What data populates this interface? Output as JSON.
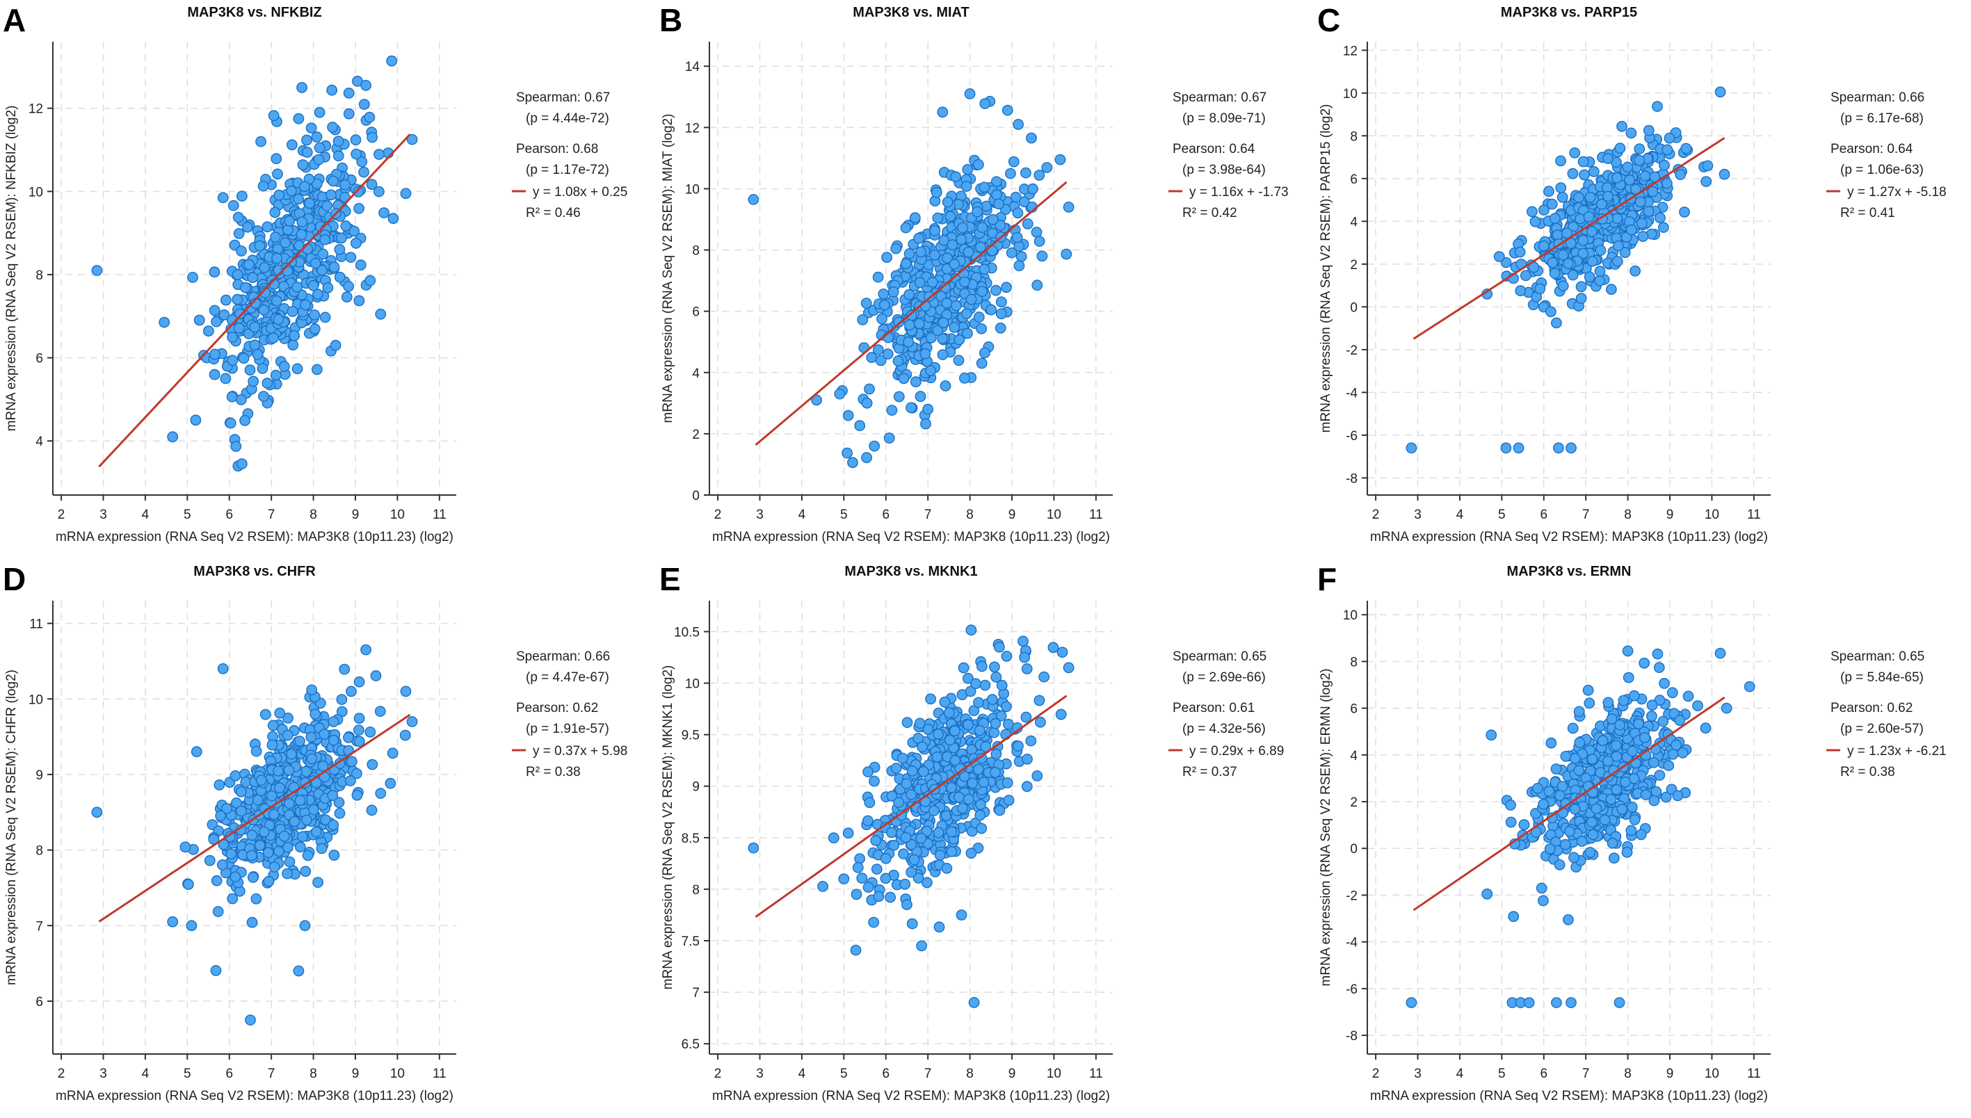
{
  "colors": {
    "point_fill": "#4da6f2",
    "point_stroke": "#1b6fc2",
    "fit_line": "#c0392b",
    "grid": "#dddddd",
    "axis": "#333333"
  },
  "chart_data": [
    {
      "type": "scatter",
      "panel": "A",
      "title": "MAP3K8 vs. NFKBIZ",
      "xlabel": "mRNA expression (RNA Seq V2 RSEM): MAP3K8 (10p11.23) (log2)",
      "ylabel": "mRNA expression (RNA Seq V2 RSEM): NFKBIZ (log2)",
      "xlim": [
        1.8,
        11.4
      ],
      "ylim": [
        2.7,
        13.6
      ],
      "xticks": [
        2,
        3,
        4,
        5,
        6,
        7,
        8,
        9,
        10,
        11
      ],
      "yticks": [
        4,
        6,
        8,
        10,
        12
      ],
      "fit": {
        "slope": 1.08,
        "intercept": 0.25,
        "x_range": [
          2.9,
          10.3
        ]
      },
      "stats": {
        "spearman": "Spearman: 0.67",
        "spearman_p": "(p = 4.44e-72)",
        "pearson": "Pearson: 0.68",
        "pearson_p": "(p = 1.17e-72)",
        "equation": "y = 1.08x + 0.25",
        "r2": "R² = 0.46"
      },
      "scatter_model": {
        "center_x": 7.4,
        "sd_x": 0.85,
        "sd_y": 1.25,
        "n": 520,
        "seed": 11
      },
      "outliers": [
        [
          2.85,
          8.1
        ],
        [
          4.65,
          4.1
        ],
        [
          6.3,
          3.45
        ],
        [
          9.05,
          12.65
        ],
        [
          9.25,
          12.55
        ],
        [
          9.4,
          11.3
        ],
        [
          10.35,
          11.25
        ],
        [
          10.2,
          9.95
        ],
        [
          9.9,
          9.35
        ],
        [
          9.6,
          7.05
        ],
        [
          5.85,
          9.85
        ],
        [
          6.75,
          11.2
        ],
        [
          8.15,
          11.9
        ],
        [
          7.65,
          11.75
        ],
        [
          5.2,
          4.5
        ]
      ]
    },
    {
      "type": "scatter",
      "panel": "B",
      "title": "MAP3K8 vs. MIAT",
      "xlabel": "mRNA expression (RNA Seq V2 RSEM): MAP3K8 (10p11.23) (log2)",
      "ylabel": "mRNA expression (RNA Seq V2 RSEM): MIAT (log2)",
      "xlim": [
        1.8,
        11.4
      ],
      "ylim": [
        0,
        14.8
      ],
      "xticks": [
        2,
        3,
        4,
        5,
        6,
        7,
        8,
        9,
        10,
        11
      ],
      "yticks": [
        0,
        2,
        4,
        6,
        8,
        10,
        12,
        14
      ],
      "fit": {
        "slope": 1.16,
        "intercept": -1.73,
        "x_range": [
          2.9,
          10.3
        ]
      },
      "stats": {
        "spearman": "Spearman: 0.67",
        "spearman_p": "(p = 8.09e-71)",
        "pearson": "Pearson: 0.64",
        "pearson_p": "(p = 3.98e-64)",
        "equation": "y = 1.16x + -1.73",
        "r2": "R² = 0.42"
      },
      "scatter_model": {
        "center_x": 7.4,
        "sd_x": 0.85,
        "sd_y": 1.45,
        "n": 520,
        "seed": 23
      },
      "outliers": [
        [
          2.85,
          9.65
        ],
        [
          4.35,
          3.1
        ],
        [
          4.9,
          3.3
        ],
        [
          6.6,
          2.85
        ],
        [
          7.0,
          2.8
        ],
        [
          8.0,
          13.1
        ],
        [
          7.35,
          12.5
        ],
        [
          9.15,
          12.1
        ],
        [
          10.15,
          10.95
        ],
        [
          10.35,
          9.4
        ],
        [
          9.6,
          6.85
        ],
        [
          5.55,
          3.0
        ]
      ]
    },
    {
      "type": "scatter",
      "panel": "C",
      "title": "MAP3K8 vs. PARP15",
      "xlabel": "mRNA expression (RNA Seq V2 RSEM): MAP3K8 (10p11.23) (log2)",
      "ylabel": "mRNA expression (RNA Seq V2 RSEM): PARP15 (log2)",
      "xlim": [
        1.8,
        11.4
      ],
      "ylim": [
        -8.8,
        12.4
      ],
      "xticks": [
        2,
        3,
        4,
        5,
        6,
        7,
        8,
        9,
        10,
        11
      ],
      "yticks": [
        -8,
        -6,
        -4,
        -2,
        0,
        2,
        4,
        6,
        8,
        10,
        12
      ],
      "fit": {
        "slope": 1.27,
        "intercept": -5.18,
        "x_range": [
          2.9,
          10.3
        ]
      },
      "stats": {
        "spearman": "Spearman: 0.66",
        "spearman_p": "(p = 6.17e-68)",
        "pearson": "Pearson: 0.64",
        "pearson_p": "(p = 1.06e-63)",
        "equation": "y = 1.27x + -5.18",
        "r2": "R² = 0.41"
      },
      "scatter_model": {
        "center_x": 7.4,
        "sd_x": 0.85,
        "sd_y": 1.25,
        "n": 520,
        "seed": 37
      },
      "outliers": [
        [
          2.85,
          -6.6
        ],
        [
          5.1,
          -6.6
        ],
        [
          5.4,
          -6.6
        ],
        [
          6.35,
          -6.6
        ],
        [
          6.65,
          -6.6
        ],
        [
          10.2,
          10.05
        ],
        [
          10.3,
          6.2
        ],
        [
          9.9,
          6.6
        ],
        [
          4.65,
          0.6
        ],
        [
          6.3,
          -0.75
        ],
        [
          8.5,
          8.25
        ],
        [
          6.0,
          2.85
        ]
      ]
    },
    {
      "type": "scatter",
      "panel": "D",
      "title": "MAP3K8 vs. CHFR",
      "xlabel": "mRNA expression (RNA Seq V2 RSEM): MAP3K8 (10p11.23) (log2)",
      "ylabel": "mRNA expression (RNA Seq V2 RSEM): CHFR (log2)",
      "xlim": [
        1.8,
        11.4
      ],
      "ylim": [
        5.3,
        11.3
      ],
      "xticks": [
        2,
        3,
        4,
        5,
        6,
        7,
        8,
        9,
        10,
        11
      ],
      "yticks": [
        6,
        7,
        8,
        9,
        10,
        11
      ],
      "fit": {
        "slope": 0.37,
        "intercept": 5.98,
        "x_range": [
          2.9,
          10.3
        ]
      },
      "stats": {
        "spearman": "Spearman: 0.66",
        "spearman_p": "(p = 4.47e-67)",
        "pearson": "Pearson: 0.62",
        "pearson_p": "(p = 1.91e-57)",
        "equation": "y = 0.37x + 5.98",
        "r2": "R² = 0.38"
      },
      "scatter_model": {
        "center_x": 7.4,
        "sd_x": 0.85,
        "sd_y": 0.5,
        "n": 520,
        "seed": 41
      },
      "outliers": [
        [
          2.85,
          8.5
        ],
        [
          5.85,
          10.4
        ],
        [
          6.5,
          5.75
        ],
        [
          7.65,
          6.4
        ],
        [
          7.8,
          7.0
        ],
        [
          4.65,
          7.05
        ],
        [
          5.1,
          7.0
        ],
        [
          9.25,
          10.65
        ],
        [
          10.2,
          10.1
        ],
        [
          10.35,
          9.7
        ],
        [
          9.6,
          8.75
        ],
        [
          8.9,
          10.1
        ]
      ]
    },
    {
      "type": "scatter",
      "panel": "E",
      "title": "MAP3K8 vs. MKNK1",
      "xlabel": "mRNA expression (RNA Seq V2 RSEM): MAP3K8 (10p11.23) (log2)",
      "ylabel": "mRNA expression (RNA Seq V2 RSEM): MKNK1 (log2)",
      "xlim": [
        1.8,
        11.4
      ],
      "ylim": [
        6.4,
        10.8
      ],
      "xticks": [
        2,
        3,
        4,
        5,
        6,
        7,
        8,
        9,
        10,
        11
      ],
      "yticks": [
        6.5,
        7,
        7.5,
        8,
        8.5,
        9,
        9.5,
        10,
        10.5
      ],
      "fit": {
        "slope": 0.29,
        "intercept": 6.89,
        "x_range": [
          2.9,
          10.3
        ]
      },
      "stats": {
        "spearman": "Spearman: 0.65",
        "spearman_p": "(p = 2.69e-66)",
        "pearson": "Pearson: 0.61",
        "pearson_p": "(p = 4.32e-56)",
        "equation": "y = 0.29x + 6.89",
        "r2": "R² = 0.37"
      },
      "scatter_model": {
        "center_x": 7.4,
        "sd_x": 0.85,
        "sd_y": 0.4,
        "n": 520,
        "seed": 53
      },
      "outliers": [
        [
          2.85,
          8.4
        ],
        [
          6.85,
          7.45
        ],
        [
          8.1,
          6.9
        ],
        [
          7.8,
          7.75
        ],
        [
          6.5,
          7.85
        ],
        [
          10.2,
          10.3
        ],
        [
          10.35,
          10.15
        ],
        [
          8.7,
          10.35
        ],
        [
          9.3,
          10.25
        ],
        [
          9.6,
          9.1
        ],
        [
          5.0,
          8.1
        ],
        [
          5.3,
          7.95
        ]
      ]
    },
    {
      "type": "scatter",
      "panel": "F",
      "title": "MAP3K8 vs. ERMN",
      "xlabel": "mRNA expression (RNA Seq V2 RSEM): MAP3K8 (10p11.23) (log2)",
      "ylabel": "mRNA expression (RNA Seq V2 RSEM): ERMN (log2)",
      "xlim": [
        1.8,
        11.4
      ],
      "ylim": [
        -8.8,
        10.6
      ],
      "xticks": [
        2,
        3,
        4,
        5,
        6,
        7,
        8,
        9,
        10,
        11
      ],
      "yticks": [
        -8,
        -6,
        -4,
        -2,
        0,
        2,
        4,
        6,
        8,
        10
      ],
      "fit": {
        "slope": 1.23,
        "intercept": -6.21,
        "x_range": [
          2.9,
          10.3
        ]
      },
      "stats": {
        "spearman": "Spearman: 0.65",
        "spearman_p": "(p = 5.84e-65)",
        "pearson": "Pearson: 0.62",
        "pearson_p": "(p = 2.60e-57)",
        "equation": "y = 1.23x + -6.21",
        "r2": "R² = 0.38"
      },
      "scatter_model": {
        "center_x": 7.4,
        "sd_x": 0.85,
        "sd_y": 1.35,
        "n": 520,
        "seed": 67
      },
      "outliers": [
        [
          2.85,
          -6.6
        ],
        [
          5.25,
          -6.6
        ],
        [
          5.45,
          -6.6
        ],
        [
          5.65,
          -6.6
        ],
        [
          6.3,
          -6.6
        ],
        [
          6.65,
          -6.6
        ],
        [
          7.8,
          -6.6
        ],
        [
          4.65,
          -1.95
        ],
        [
          4.75,
          4.85
        ],
        [
          5.95,
          -1.7
        ],
        [
          8.0,
          8.45
        ],
        [
          10.2,
          8.35
        ],
        [
          10.35,
          6.0
        ],
        [
          9.85,
          5.15
        ],
        [
          7.25,
          1.7
        ]
      ]
    }
  ]
}
